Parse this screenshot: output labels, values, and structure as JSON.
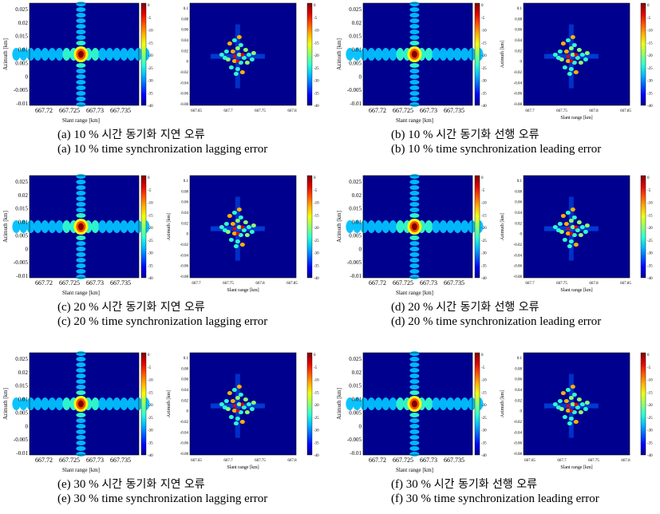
{
  "colormap": [
    "#00008f",
    "#0000ff",
    "#0060ff",
    "#00c0ff",
    "#30ffcf",
    "#90ff6f",
    "#f0ff10",
    "#ffb000",
    "#ff5000",
    "#e00000",
    "#800000"
  ],
  "pairs": [
    {
      "caption_kr_label": "(a)",
      "caption_kr_pct": "10 %",
      "caption_kr_text": "시간 동기화 지연 오류",
      "caption_en": "(a) 10 % time synchronization lagging error",
      "left": {
        "xlabel": "Slant range [km]",
        "ylabel": "Azimuth [km]",
        "xticks": [
          "667.72",
          "667.725",
          "667.73",
          "667.735"
        ],
        "yticks": [
          "0.025",
          "0.02",
          "0.015",
          "0.01",
          "0.005",
          "0",
          "-0.005",
          "-0.01"
        ],
        "cbar_ticks": [
          "0",
          "-5",
          "-10",
          "-15",
          "-20",
          "-25",
          "-30",
          "-35",
          "-40"
        ]
      },
      "right": {
        "xlabel": "",
        "ylabel": "",
        "xticks": [
          "667.65",
          "667.7",
          "667.75",
          "667.8"
        ],
        "yticks": [
          "0.1",
          "0.08",
          "0.06",
          "0.04",
          "0.02",
          "0",
          "-0.02",
          "-0.04",
          "-0.06",
          "-0.08"
        ],
        "cbar_ticks": [
          "0",
          "-5",
          "-10",
          "-15",
          "-20",
          "-25",
          "-30",
          "-35",
          "-40"
        ]
      }
    },
    {
      "caption_kr_label": "(b)",
      "caption_kr_pct": "10 %",
      "caption_kr_text": "시간 동기화 선행 오류",
      "caption_en": "(b) 10 % time synchronization leading error",
      "left": {
        "xlabel": "Slant range [km]",
        "ylabel": "Azimuth [km]",
        "xticks": [
          "667.72",
          "667.725",
          "667.73",
          "667.735"
        ],
        "yticks": [
          "0.025",
          "0.02",
          "0.015",
          "0.01",
          "0.005",
          "0",
          "-0.005",
          "-0.01"
        ],
        "cbar_ticks": [
          "0",
          "-5",
          "-10",
          "-15",
          "-20",
          "-25",
          "-30",
          "-35",
          "-40"
        ]
      },
      "right": {
        "xlabel": "Slant range [km]",
        "ylabel": "Azimuth [km]",
        "xticks": [
          "667.7",
          "667.75",
          "667.8",
          "667.85"
        ],
        "yticks": [
          "0.1",
          "0.08",
          "0.06",
          "0.04",
          "0.02",
          "0",
          "-0.02",
          "-0.04",
          "-0.06",
          "-0.08"
        ],
        "cbar_ticks": [
          "0",
          "-5",
          "-10",
          "-15",
          "-20",
          "-25",
          "-30",
          "-35",
          "-40"
        ]
      }
    },
    {
      "caption_kr_label": "(c)",
      "caption_kr_pct": "20 %",
      "caption_kr_text": "시간 동기화 지연 오류",
      "caption_en": "(c) 20 % time synchronization lagging error",
      "left": {
        "xlabel": "Slant range [km]",
        "ylabel": "Azimuth [km]",
        "xticks": [
          "667.72",
          "667.725",
          "667.73",
          "667.735"
        ],
        "yticks": [
          "0.025",
          "0.02",
          "0.015",
          "0.01",
          "0.005",
          "0",
          "-0.005",
          "-0.01"
        ],
        "cbar_ticks": [
          "0",
          "-5",
          "-10",
          "-15",
          "-20",
          "-25",
          "-30",
          "-35",
          "-40"
        ]
      },
      "right": {
        "xlabel": "Slant range [km]",
        "ylabel": "Azimuth [km]",
        "xticks": [
          "667.7",
          "667.75",
          "667.8",
          "667.85"
        ],
        "yticks": [
          "0.1",
          "0.08",
          "0.06",
          "0.04",
          "0.02",
          "0",
          "-0.02",
          "-0.04",
          "-0.06",
          "-0.08"
        ],
        "cbar_ticks": [
          "0",
          "-5",
          "-10",
          "-15",
          "-20",
          "-25",
          "-30",
          "-35",
          "-40"
        ]
      }
    },
    {
      "caption_kr_label": "(d)",
      "caption_kr_pct": "20 %",
      "caption_kr_text": "시간 동기화 선행 오류",
      "caption_en": "(d) 20 % time synchronization leading error",
      "left": {
        "xlabel": "Slant range [km]",
        "ylabel": "Azimuth [km]",
        "xticks": [
          "667.72",
          "667.725",
          "667.73",
          "667.735"
        ],
        "yticks": [
          "0.025",
          "0.02",
          "0.015",
          "0.01",
          "0.005",
          "0",
          "-0.005",
          "-0.01"
        ],
        "cbar_ticks": [
          "0",
          "-5",
          "-10",
          "-15",
          "-20",
          "-25",
          "-30",
          "-35",
          "-40"
        ]
      },
      "right": {
        "xlabel": "Slant range [km]",
        "ylabel": "Azimuth [km]",
        "xticks": [
          "667.7",
          "667.75",
          "667.8",
          "667.85"
        ],
        "yticks": [
          "0.1",
          "0.08",
          "0.06",
          "0.04",
          "0.02",
          "0",
          "-0.02",
          "-0.04",
          "-0.06",
          "-0.08"
        ],
        "cbar_ticks": [
          "0",
          "-5",
          "-10",
          "-15",
          "-20",
          "-25",
          "-30",
          "-35",
          "-40"
        ]
      }
    },
    {
      "caption_kr_label": "(e)",
      "caption_kr_pct": "30 %",
      "caption_kr_text": "시간 동기화 지연 오류",
      "caption_en": "(e) 30 % time synchronization lagging error",
      "left": {
        "xlabel": "Slant range [km]",
        "ylabel": "Azimuth [km]",
        "xticks": [
          "667.72",
          "667.725",
          "667.73",
          "667.735"
        ],
        "yticks": [
          "0.025",
          "0.02",
          "0.015",
          "0.01",
          "0.005",
          "0",
          "-0.005",
          "-0.01"
        ],
        "cbar_ticks": [
          "0",
          "-5",
          "-10",
          "-15",
          "-20",
          "-25",
          "-30",
          "-35",
          "-40"
        ]
      },
      "right": {
        "xlabel": "Slant range [km]",
        "ylabel": "Azimuth [km]",
        "xticks": [
          "667.65",
          "667.7",
          "667.75",
          "667.8"
        ],
        "yticks": [
          "0.1",
          "0.08",
          "0.06",
          "0.04",
          "0.02",
          "0",
          "-0.02",
          "-0.04",
          "-0.06",
          "-0.08"
        ],
        "cbar_ticks": [
          "0",
          "-5",
          "-10",
          "-15",
          "-20",
          "-25",
          "-30",
          "-35",
          "-40"
        ]
      }
    },
    {
      "caption_kr_label": "(f)",
      "caption_kr_pct": "30 %",
      "caption_kr_text": "시간 동기화 선행 오류",
      "caption_en": "(f) 30 % time synchronization leading error",
      "left": {
        "xlabel": "Slant range [km]",
        "ylabel": "Azimuth [km]",
        "xticks": [
          "667.72",
          "667.725",
          "667.73",
          "667.735"
        ],
        "yticks": [
          "0.025",
          "0.02",
          "0.015",
          "0.01",
          "0.005",
          "0",
          "-0.005",
          "-0.01"
        ],
        "cbar_ticks": [
          "0",
          "-5",
          "-10",
          "-15",
          "-20",
          "-25",
          "-30",
          "-35",
          "-40"
        ]
      },
      "right": {
        "xlabel": "Slant range [km]",
        "ylabel": "Azimuth [km]",
        "xticks": [
          "667.65",
          "667.7",
          "667.75",
          "667.8"
        ],
        "yticks": [
          "0.1",
          "0.08",
          "0.06",
          "0.04",
          "0.02",
          "0",
          "-0.02",
          "-0.04",
          "-0.06",
          "-0.08"
        ],
        "cbar_ticks": [
          "0",
          "-5",
          "-10",
          "-15",
          "-20",
          "-25",
          "-30",
          "-35",
          "-40"
        ]
      }
    }
  ],
  "chart_data": [
    {
      "type": "heatmap",
      "panel": "a-left",
      "xlabel": "Slant range [km]",
      "ylabel": "Azimuth [km]",
      "xlim": [
        667.716,
        667.738
      ],
      "ylim": [
        -0.01,
        0.028
      ],
      "clim": [
        -40,
        0
      ],
      "peak": {
        "x": 667.7265,
        "y": 0.01
      }
    },
    {
      "type": "heatmap",
      "panel": "a-right",
      "xlim": [
        667.65,
        667.85
      ],
      "ylim": [
        -0.1,
        0.11
      ],
      "clim": [
        -40,
        0
      ],
      "peak": {
        "x": 667.745,
        "y": 0.0
      }
    },
    {
      "type": "heatmap",
      "panel": "b-left",
      "xlabel": "Slant range [km]",
      "ylabel": "Azimuth [km]",
      "xlim": [
        667.716,
        667.738
      ],
      "ylim": [
        -0.01,
        0.028
      ],
      "clim": [
        -40,
        0
      ],
      "peak": {
        "x": 667.7265,
        "y": 0.01
      }
    },
    {
      "type": "heatmap",
      "panel": "b-right",
      "xlabel": "Slant range [km]",
      "ylabel": "Azimuth [km]",
      "xlim": [
        667.65,
        667.85
      ],
      "ylim": [
        -0.1,
        0.1
      ],
      "clim": [
        -40,
        0
      ],
      "peak": {
        "x": 667.745,
        "y": 0.01
      }
    },
    {
      "type": "heatmap",
      "panel": "c-left",
      "xlabel": "Slant range [km]",
      "ylabel": "Azimuth [km]",
      "xlim": [
        667.716,
        667.738
      ],
      "ylim": [
        -0.01,
        0.028
      ],
      "clim": [
        -40,
        0
      ],
      "peak": {
        "x": 667.7265,
        "y": 0.01
      }
    },
    {
      "type": "heatmap",
      "panel": "c-right",
      "xlabel": "Slant range [km]",
      "ylabel": "Azimuth [km]",
      "xlim": [
        667.65,
        667.85
      ],
      "ylim": [
        -0.1,
        0.1
      ],
      "clim": [
        -40,
        0
      ],
      "peak": {
        "x": 667.745,
        "y": 0.01
      }
    },
    {
      "type": "heatmap",
      "panel": "d-left",
      "xlabel": "Slant range [km]",
      "ylabel": "Azimuth [km]",
      "xlim": [
        667.716,
        667.738
      ],
      "ylim": [
        -0.01,
        0.028
      ],
      "clim": [
        -40,
        0
      ],
      "peak": {
        "x": 667.7265,
        "y": 0.01
      }
    },
    {
      "type": "heatmap",
      "panel": "d-right",
      "xlabel": "Slant range [km]",
      "ylabel": "Azimuth [km]",
      "xlim": [
        667.65,
        667.85
      ],
      "ylim": [
        -0.1,
        0.1
      ],
      "clim": [
        -40,
        0
      ],
      "peak": {
        "x": 667.745,
        "y": 0.01
      }
    },
    {
      "type": "heatmap",
      "panel": "e-left",
      "xlabel": "Slant range [km]",
      "ylabel": "Azimuth [km]",
      "xlim": [
        667.716,
        667.738
      ],
      "ylim": [
        -0.01,
        0.028
      ],
      "clim": [
        -40,
        0
      ],
      "peak": {
        "x": 667.7265,
        "y": 0.01
      }
    },
    {
      "type": "heatmap",
      "panel": "e-right",
      "xlabel": "Slant range [km]",
      "ylabel": "Azimuth [km]",
      "xlim": [
        667.65,
        667.85
      ],
      "ylim": [
        -0.1,
        0.1
      ],
      "clim": [
        -40,
        0
      ],
      "peak": {
        "x": 667.745,
        "y": 0.01
      }
    },
    {
      "type": "heatmap",
      "panel": "f-left",
      "xlabel": "Slant range [km]",
      "ylabel": "Azimuth [km]",
      "xlim": [
        667.716,
        667.738
      ],
      "ylim": [
        -0.01,
        0.028
      ],
      "clim": [
        -40,
        0
      ],
      "peak": {
        "x": 667.7265,
        "y": 0.01
      }
    },
    {
      "type": "heatmap",
      "panel": "f-right",
      "xlabel": "Slant range [km]",
      "ylabel": "Azimuth [km]",
      "xlim": [
        667.65,
        667.85
      ],
      "ylim": [
        -0.1,
        0.1
      ],
      "clim": [
        -40,
        0
      ],
      "peak": {
        "x": 667.745,
        "y": 0.01
      }
    }
  ]
}
